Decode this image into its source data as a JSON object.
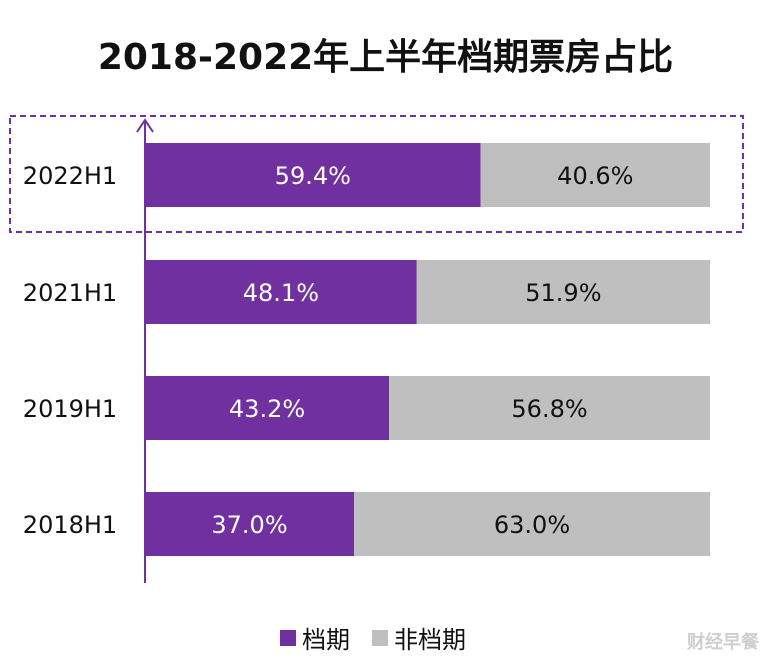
{
  "chart_data": {
    "type": "bar",
    "orientation": "horizontal",
    "stacked": true,
    "percent_stacked": true,
    "title": "2018-2022年上半年档期票房占比",
    "categories": [
      "2022H1",
      "2021H1",
      "2019H1",
      "2018H1"
    ],
    "series": [
      {
        "name": "档期",
        "values": [
          59.4,
          48.1,
          43.2,
          37.0
        ],
        "labels": [
          "59.4%",
          "48.1%",
          "43.2%",
          "37.0%"
        ],
        "color": "#7030a0"
      },
      {
        "name": "非档期",
        "values": [
          40.6,
          51.9,
          56.8,
          63.0
        ],
        "labels": [
          "40.6%",
          "51.9%",
          "56.8%",
          "63.0%"
        ],
        "color": "#bfbfbf"
      }
    ],
    "xlim": [
      0,
      100
    ],
    "grid": false,
    "legend_position": "bottom",
    "highlight_category": "2022H1",
    "highlight_color": "#7030a0"
  },
  "watermark": "财经早餐"
}
